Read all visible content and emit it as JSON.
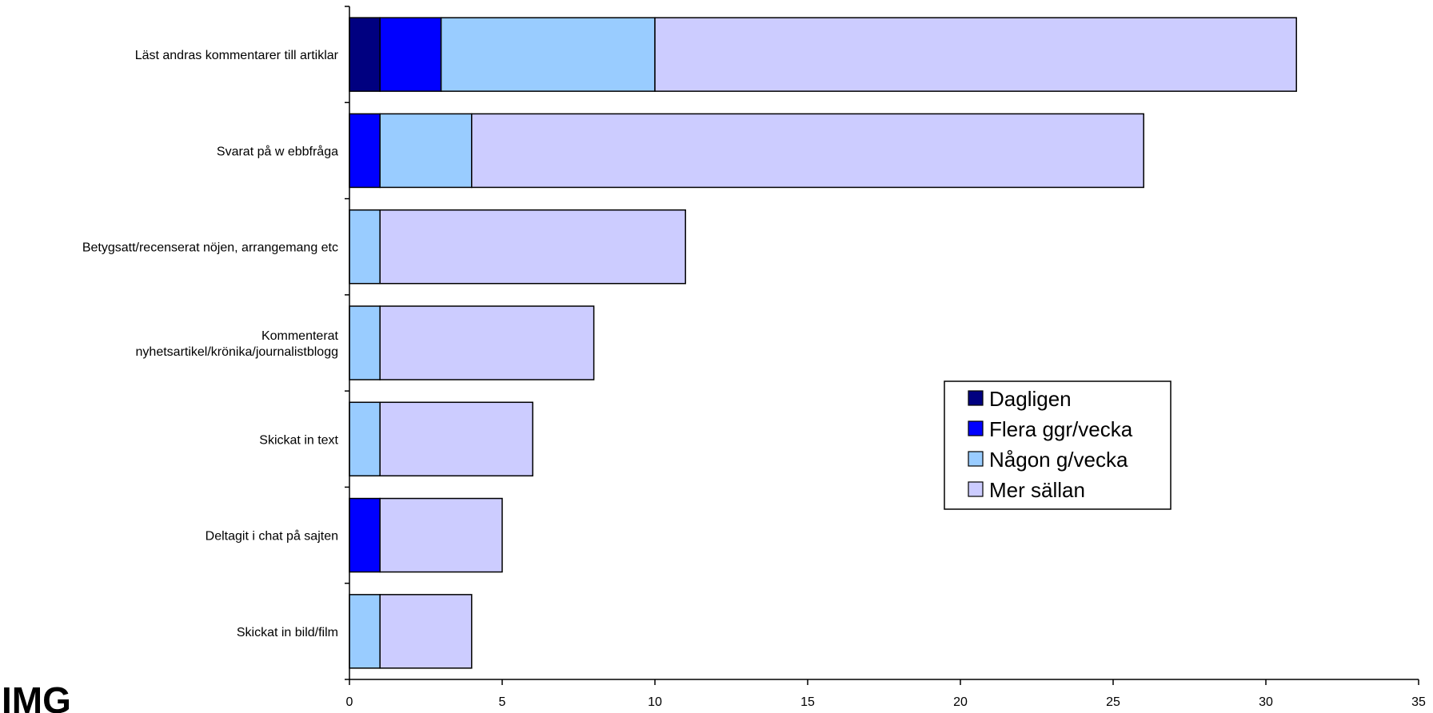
{
  "logo": {
    "text": "IMG"
  },
  "chart_data": {
    "type": "bar",
    "orientation": "horizontal",
    "stacked": true,
    "title": "",
    "xlabel": "",
    "ylabel": "",
    "xlim": [
      0,
      35
    ],
    "x_ticks": [
      0,
      5,
      10,
      15,
      20,
      25,
      30,
      35
    ],
    "grid": false,
    "legend_position": "right",
    "categories": [
      "Läst andras kommentarer till artiklar",
      "Svarat på w ebbfråga",
      "Betygsatt/recenserat nöjen, arrangemang etc",
      [
        "Kommenterat",
        "nyhetsartikel/krönika/journalistblogg"
      ],
      "Skickat in text",
      "Deltagit i chat på sajten",
      "Skickat in bild/film"
    ],
    "series": [
      {
        "name": "Dagligen",
        "color": "#000080",
        "values": [
          1,
          0,
          0,
          0,
          0,
          0,
          0
        ]
      },
      {
        "name": "Flera ggr/vecka",
        "color": "#0000FF",
        "values": [
          2,
          1,
          0,
          0,
          0,
          1,
          0
        ]
      },
      {
        "name": "Någon g/vecka",
        "color": "#99CCFF",
        "values": [
          7,
          3,
          1,
          1,
          1,
          0,
          1
        ]
      },
      {
        "name": "Mer sällan",
        "color": "#CCCCFF",
        "values": [
          21,
          22,
          10,
          7,
          5,
          4,
          3
        ]
      }
    ]
  }
}
